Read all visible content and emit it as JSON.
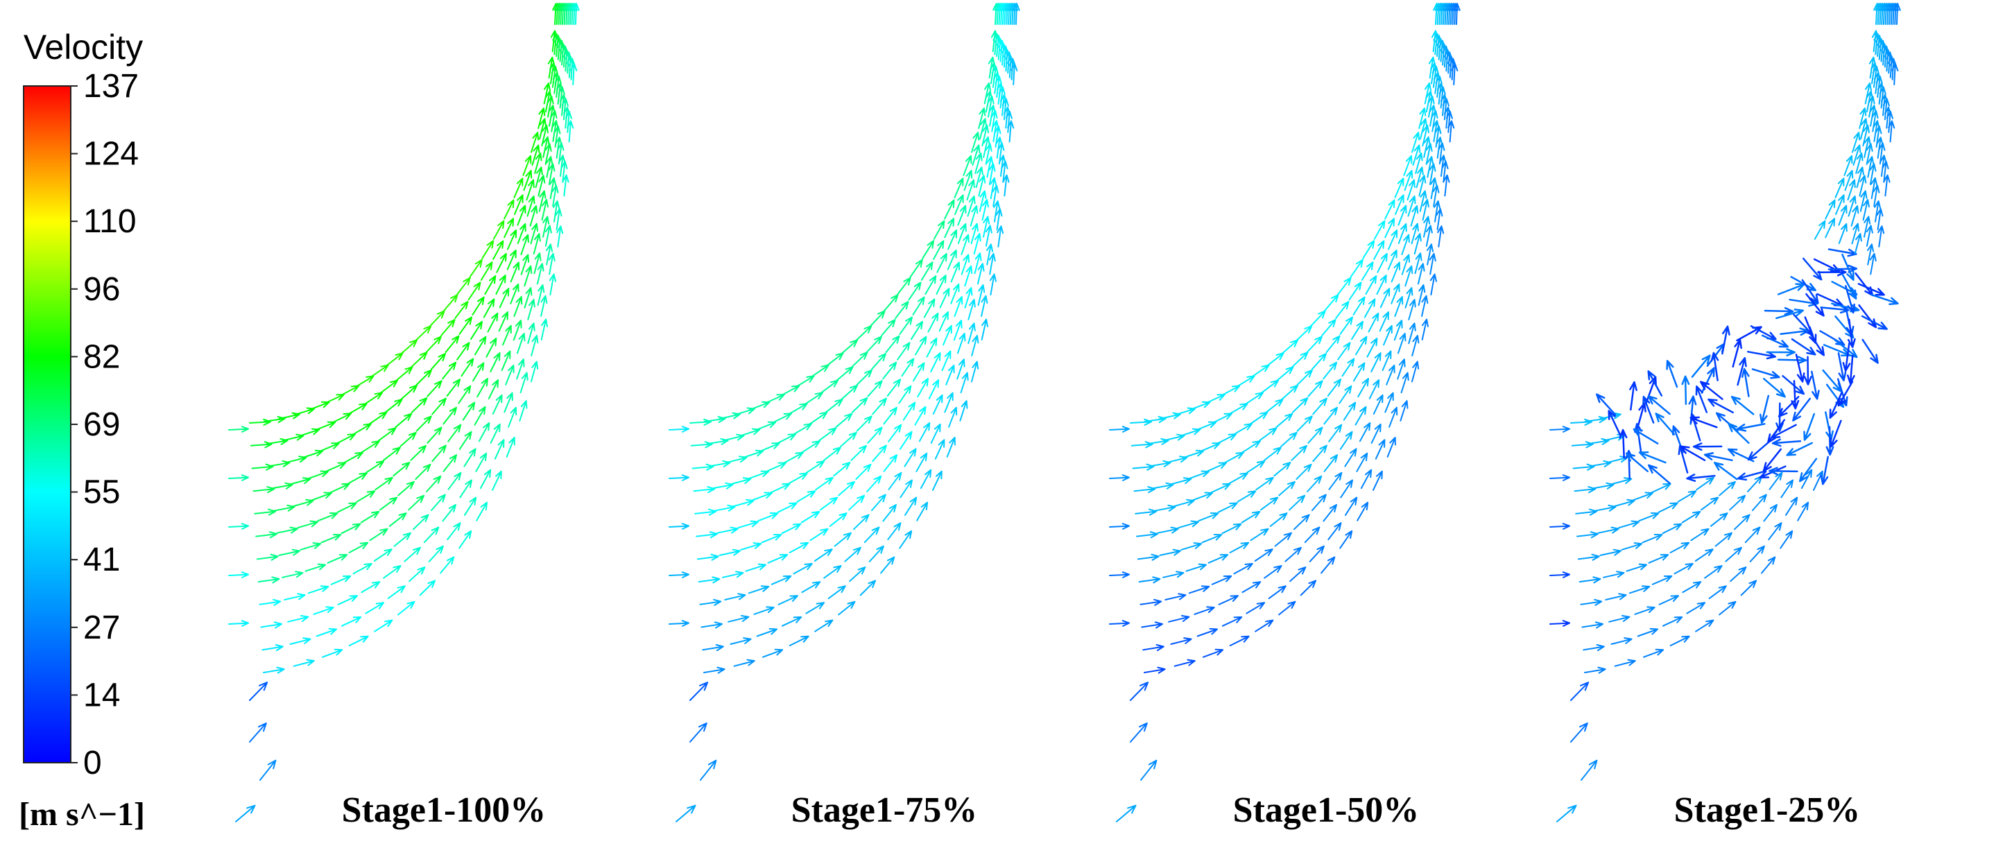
{
  "legend": {
    "title": "Velocity",
    "unit": "[m s^−1]",
    "ticks": [
      "137",
      "124",
      "110",
      "96",
      "82",
      "69",
      "55",
      "41",
      "27",
      "14",
      "0"
    ],
    "colormap": [
      "#ff0000",
      "#ff8000",
      "#ffff00",
      "#00ff00",
      "#00ffff",
      "#0000ff"
    ]
  },
  "panels": [
    {
      "label": "Stage1-100%",
      "level": 0.58,
      "vortex": false
    },
    {
      "label": "Stage1-75%",
      "level": 0.45,
      "vortex": false
    },
    {
      "label": "Stage1-50%",
      "level": 0.34,
      "vortex": false
    },
    {
      "label": "Stage1-25%",
      "level": 0.28,
      "vortex": true
    }
  ]
}
